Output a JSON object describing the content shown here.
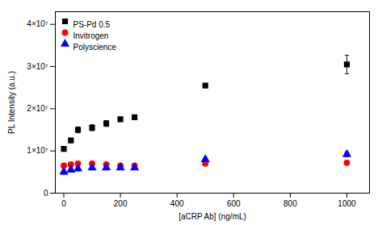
{
  "chart_data": {
    "type": "scatter",
    "xlabel": "[aCRP Ab] (ng/mL)",
    "ylabel": "PL Intensity (a.u.)",
    "xlim": [
      -30,
      1080
    ],
    "ylim": [
      0,
      43000000
    ],
    "xticks": [
      0,
      200,
      400,
      600,
      800,
      1000
    ],
    "yticks": [
      0,
      {
        "value": 10000000,
        "label": "1×10⁷"
      },
      {
        "value": 20000000,
        "label": "2×10⁷"
      },
      {
        "value": 30000000,
        "label": "3×10⁷"
      },
      {
        "value": 40000000,
        "label": "4×10⁷"
      }
    ],
    "grid": false,
    "legend": "upper left",
    "x": [
      0,
      25,
      50,
      100,
      150,
      200,
      250,
      500,
      1000
    ],
    "series": [
      {
        "name": "PS-Pd 0.5",
        "color": "black",
        "marker": "square",
        "values": [
          10500000,
          12500000,
          15000000,
          15500000,
          16500000,
          17500000,
          18000000,
          25500000,
          30500000
        ],
        "yerr": [
          250000,
          250000,
          700000,
          700000,
          700000,
          500000,
          400000,
          300000,
          2200000
        ]
      },
      {
        "name": "Invitrogen",
        "color": "red",
        "marker": "circle",
        "values": [
          6500000,
          6800000,
          7000000,
          7000000,
          6800000,
          6500000,
          6500000,
          7000000,
          7200000
        ],
        "yerr": [
          500000,
          500000,
          500000,
          500000,
          500000,
          400000,
          400000,
          400000,
          500000
        ]
      },
      {
        "name": "Polyscience",
        "color": "blue",
        "marker": "triangle",
        "values": [
          5000000,
          5500000,
          5800000,
          6000000,
          6000000,
          6000000,
          6000000,
          8000000,
          9200000
        ],
        "yerr": [
          500000,
          500000,
          500000,
          500000,
          400000,
          400000,
          400000,
          500000,
          600000
        ]
      }
    ]
  }
}
